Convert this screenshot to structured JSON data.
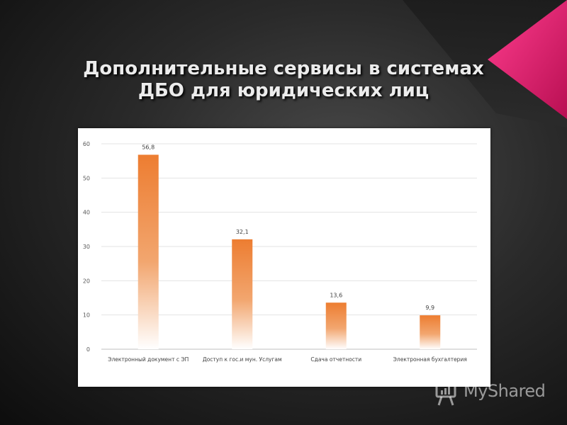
{
  "slide": {
    "title_line1": "Дополнительные сервисы в системах",
    "title_line2": "ДБО для юридических лиц",
    "accent_color": "#e8186e"
  },
  "watermark": {
    "brand": "MyShared",
    "icon": "presentation-board-icon"
  },
  "chart_data": {
    "type": "bar",
    "categories": [
      "Электронный документ с ЭП",
      "Доступ к гос.и мун. Услугам",
      "Сдача отчетности",
      "Электронная бухгалтерия"
    ],
    "values": [
      56.8,
      32.1,
      13.6,
      9.9
    ],
    "value_labels": [
      "56,8",
      "32,1",
      "13,6",
      "9,9"
    ],
    "ylim": [
      0,
      60
    ],
    "yticks": [
      0,
      10,
      20,
      30,
      40,
      50,
      60
    ],
    "grid": true,
    "legend": "none",
    "bar_color": "#ed7d31",
    "title": "",
    "xlabel": "",
    "ylabel": ""
  }
}
